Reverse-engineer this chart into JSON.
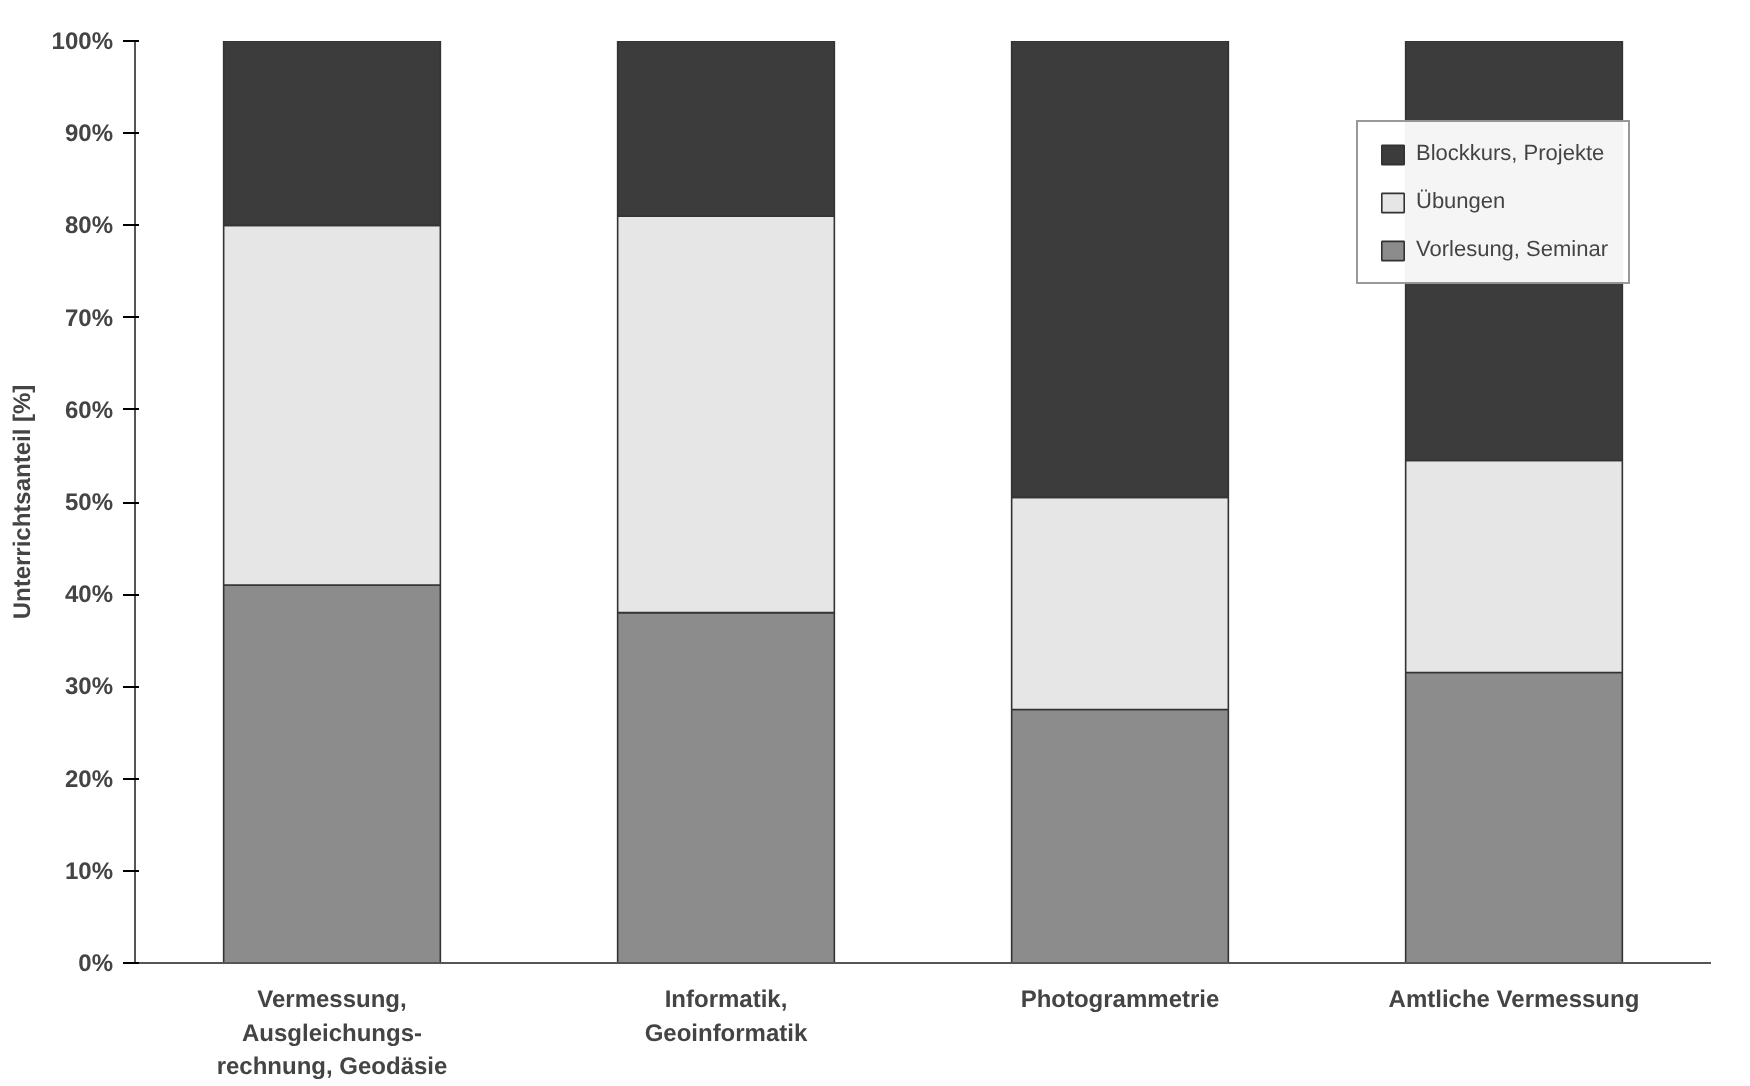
{
  "chart_data": {
    "type": "bar",
    "stacked": true,
    "ylabel": "Unterrichtsanteil [%]",
    "categories": [
      "Vermessung,\nAusgleichungs-\nrechnung, Geodäsie",
      "Informatik,\nGeoinformatik",
      "Photogrammetrie",
      "Amtliche Vermessung"
    ],
    "series": [
      {
        "name": "Vorlesung, Seminar",
        "color": "#8c8c8c",
        "values": [
          41,
          38,
          27.5,
          31.5
        ]
      },
      {
        "name": "Übungen",
        "color": "#e6e6e6",
        "values": [
          39,
          43,
          23,
          23
        ]
      },
      {
        "name": "Blockkurs, Projekte",
        "color": "#3c3c3c",
        "values": [
          20,
          19,
          49.5,
          45.5
        ]
      }
    ],
    "ylim": [
      0,
      100
    ],
    "yticks": [
      {
        "value": 0,
        "label": "0%"
      },
      {
        "value": 10,
        "label": "10%"
      },
      {
        "value": 20,
        "label": "20%"
      },
      {
        "value": 30,
        "label": "30%"
      },
      {
        "value": 40,
        "label": "40%"
      },
      {
        "value": 50,
        "label": "50%"
      },
      {
        "value": 60,
        "label": "60%"
      },
      {
        "value": 70,
        "label": "70%"
      },
      {
        "value": 80,
        "label": "80%"
      },
      {
        "value": 90,
        "label": "90%"
      },
      {
        "value": 100,
        "label": "100%"
      }
    ],
    "grid": false,
    "legend": "top right"
  }
}
